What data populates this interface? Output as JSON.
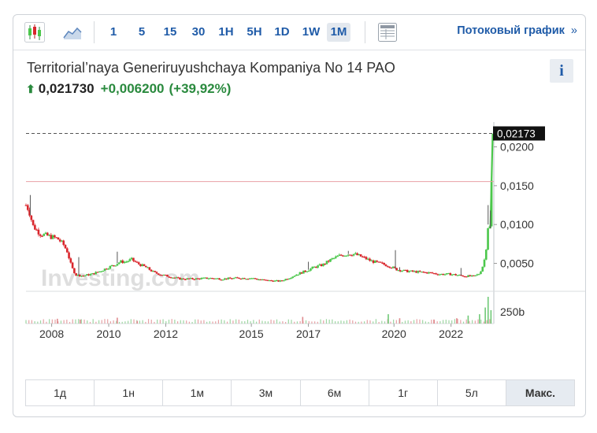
{
  "toolbar": {
    "intervals": [
      "1",
      "5",
      "15",
      "30",
      "1H",
      "5H",
      "1D",
      "1W",
      "1M"
    ],
    "active_interval": "1M",
    "stream_label": "Потоковый график",
    "stream_chevron": "»",
    "icons": [
      "candlestick-chart-icon",
      "area-chart-icon",
      "table-view-icon"
    ]
  },
  "instrument": {
    "name": "Territorial’naya Generiruyushchaya Kompaniya No 14 PAO",
    "direction": "up",
    "arrow": "⬆",
    "last": "0,021730",
    "change": "+0,006200",
    "change_pct": "(+39,92%)",
    "info": "i"
  },
  "watermark": "Investing.com",
  "colors": {
    "up": "#4bc74b",
    "down": "#d9262c",
    "accent": "#1f5ba8",
    "ref_line": "#e9a0a5"
  },
  "chart_data": {
    "type": "candlestick",
    "x_ticks": [
      "2008",
      "2010",
      "2012",
      "2015",
      "2017",
      "2020",
      "2022"
    ],
    "x_tick_years": [
      2008,
      2010,
      2012,
      2015,
      2017,
      2020,
      2022
    ],
    "x_range": [
      2007.1,
      2023.5
    ],
    "y_ticks": [
      "0,0050",
      "0,0100",
      "0,0150",
      "0,0200"
    ],
    "y_tick_values": [
      0.005,
      0.01,
      0.015,
      0.02
    ],
    "ylim": [
      0.0015,
      0.0232
    ],
    "last_price_label": "0,02173",
    "last_price": 0.02173,
    "reference_line": 0.01553,
    "volume_label": "250b",
    "price_path": [
      [
        2007.1,
        0.0125
      ],
      [
        2007.2,
        0.0119
      ],
      [
        2007.35,
        0.0098
      ],
      [
        2007.6,
        0.0088
      ],
      [
        2007.9,
        0.0085
      ],
      [
        2008.2,
        0.0082
      ],
      [
        2008.4,
        0.0075
      ],
      [
        2008.55,
        0.0065
      ],
      [
        2008.7,
        0.0045
      ],
      [
        2008.85,
        0.0035
      ],
      [
        2009.1,
        0.0034
      ],
      [
        2009.4,
        0.0036
      ],
      [
        2009.7,
        0.004
      ],
      [
        2010.0,
        0.0045
      ],
      [
        2010.2,
        0.0048
      ],
      [
        2010.4,
        0.0052
      ],
      [
        2010.6,
        0.0052
      ],
      [
        2010.8,
        0.0055
      ],
      [
        2011.0,
        0.005
      ],
      [
        2011.3,
        0.0045
      ],
      [
        2011.6,
        0.0038
      ],
      [
        2012.0,
        0.0034
      ],
      [
        2012.5,
        0.003
      ],
      [
        2013.0,
        0.003
      ],
      [
        2013.5,
        0.0031
      ],
      [
        2014.0,
        0.003
      ],
      [
        2014.5,
        0.0031
      ],
      [
        2015.0,
        0.0031
      ],
      [
        2015.5,
        0.0028
      ],
      [
        2016.0,
        0.0027
      ],
      [
        2016.3,
        0.0031
      ],
      [
        2016.6,
        0.0036
      ],
      [
        2016.9,
        0.004
      ],
      [
        2017.2,
        0.0045
      ],
      [
        2017.5,
        0.0048
      ],
      [
        2017.8,
        0.0055
      ],
      [
        2018.1,
        0.006
      ],
      [
        2018.4,
        0.0062
      ],
      [
        2018.6,
        0.0062
      ],
      [
        2018.9,
        0.0058
      ],
      [
        2019.2,
        0.0053
      ],
      [
        2019.5,
        0.005
      ],
      [
        2019.8,
        0.0047
      ],
      [
        2020.1,
        0.0042
      ],
      [
        2020.4,
        0.004
      ],
      [
        2020.8,
        0.0039
      ],
      [
        2021.2,
        0.0038
      ],
      [
        2021.6,
        0.0036
      ],
      [
        2022.0,
        0.0036
      ],
      [
        2022.4,
        0.0034
      ],
      [
        2022.8,
        0.0033
      ],
      [
        2023.0,
        0.0037
      ],
      [
        2023.15,
        0.005
      ],
      [
        2023.25,
        0.0075
      ],
      [
        2023.3,
        0.01
      ],
      [
        2023.38,
        0.0095
      ],
      [
        2023.42,
        0.0155
      ],
      [
        2023.46,
        0.0217
      ]
    ],
    "spikes": [
      [
        2007.25,
        0.0138
      ],
      [
        2008.95,
        0.0058
      ],
      [
        2010.3,
        0.0065
      ],
      [
        2017.0,
        0.0052
      ],
      [
        2018.4,
        0.0066
      ],
      [
        2020.05,
        0.0067
      ],
      [
        2020.2,
        0.0045
      ],
      [
        2022.35,
        0.0044
      ],
      [
        2023.3,
        0.0125
      ],
      [
        2023.38,
        0.0118
      ]
    ],
    "volume_spikes": [
      [
        2008.2,
        0.18
      ],
      [
        2009.0,
        0.15
      ],
      [
        2010.3,
        0.22
      ],
      [
        2011.0,
        0.1
      ],
      [
        2016.8,
        0.25
      ],
      [
        2019.8,
        0.35
      ],
      [
        2020.2,
        0.2
      ],
      [
        2021.4,
        0.15
      ],
      [
        2022.2,
        0.2
      ],
      [
        2022.6,
        0.3
      ],
      [
        2023.0,
        0.35
      ],
      [
        2023.2,
        0.6
      ],
      [
        2023.3,
        1.0
      ],
      [
        2023.4,
        0.5
      ]
    ]
  },
  "ranges": [
    "1д",
    "1н",
    "1м",
    "3м",
    "6м",
    "1г",
    "5л",
    "Макс."
  ],
  "active_range": "Макс."
}
